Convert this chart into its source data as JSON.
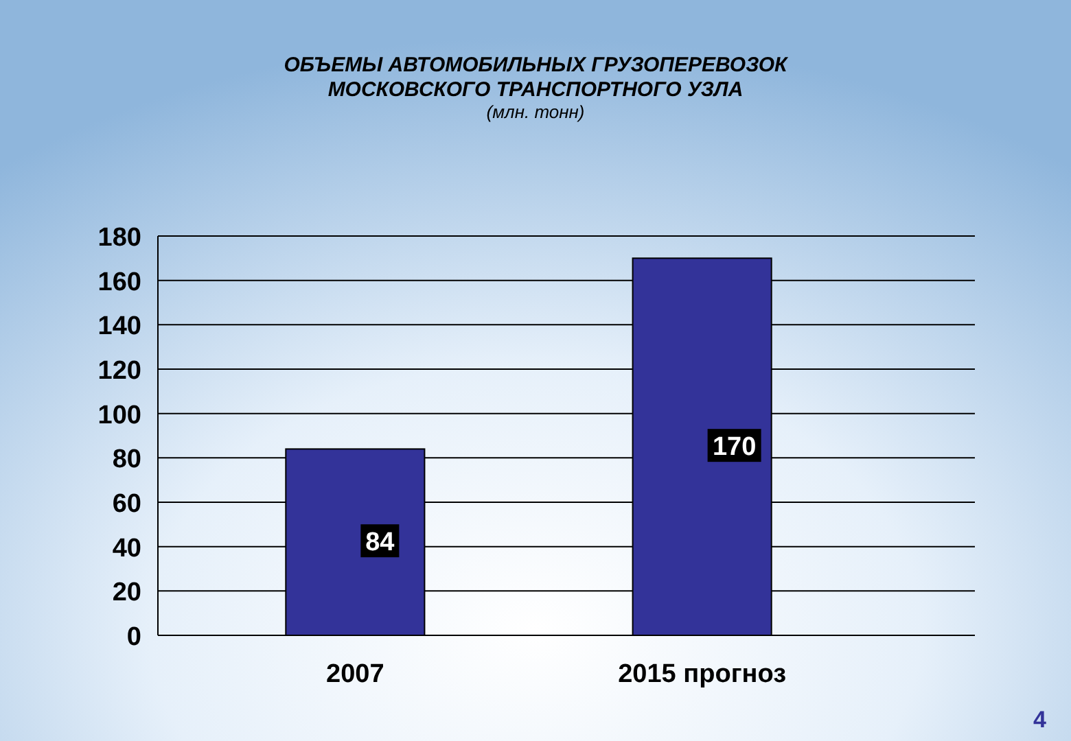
{
  "chart_data": {
    "type": "bar",
    "title": "ОБЪЕМЫ АВТОМОБИЛЬНЫХ ГРУЗОПЕРЕВОЗОК\nМОСКОВСКОГО ТРАНСПОРТНОГО УЗЛА",
    "subtitle": "(млн. тонн)",
    "categories": [
      "2007",
      "2015 прогноз"
    ],
    "values": [
      84,
      170
    ],
    "color": "#333399",
    "ylim": [
      0,
      180
    ],
    "yticks": [
      0,
      20,
      40,
      60,
      80,
      100,
      120,
      140,
      160,
      180
    ],
    "grid": "y",
    "data_labels": true,
    "annotations": [
      "4"
    ]
  }
}
